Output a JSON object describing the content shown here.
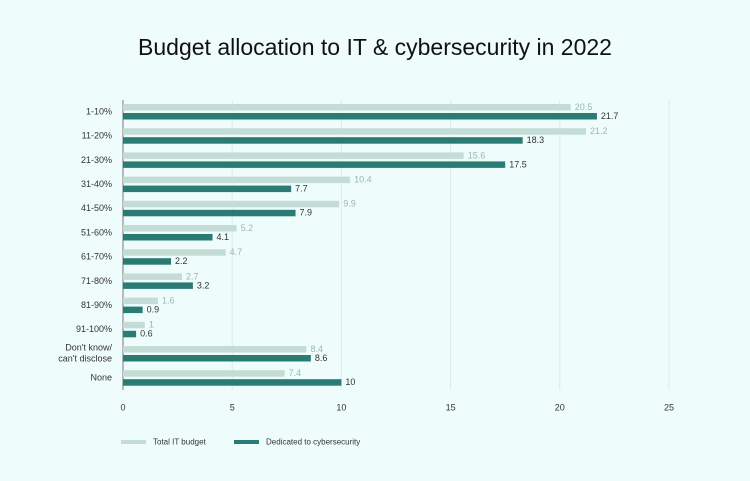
{
  "chart_data": {
    "type": "hbar",
    "title": "Budget allocation to IT & cybersecurity in 2022",
    "categories": [
      "1-10%",
      "11-20%",
      "21-30%",
      "31-40%",
      "41-50%",
      "51-60%",
      "61-70%",
      "71-80%",
      "81-90%",
      "91-100%",
      "Don't know/\ncan't disclose",
      "None"
    ],
    "series": [
      {
        "name": "Total IT budget",
        "color": "#c3ddd6",
        "values": [
          20.5,
          21.2,
          15.6,
          10.4,
          9.9,
          5.2,
          4.7,
          2.7,
          1.6,
          1,
          8.4,
          7.4
        ]
      },
      {
        "name": "Dedicated to cybersecurity",
        "color": "#2a7b74",
        "values": [
          21.7,
          18.3,
          17.5,
          7.7,
          7.9,
          4.1,
          2.2,
          3.2,
          0.9,
          0.6,
          8.6,
          10
        ]
      }
    ],
    "xlim": [
      0,
      25
    ],
    "xticks": [
      0,
      5,
      10,
      15,
      20,
      25
    ],
    "grid": true,
    "legend": "bottom"
  }
}
